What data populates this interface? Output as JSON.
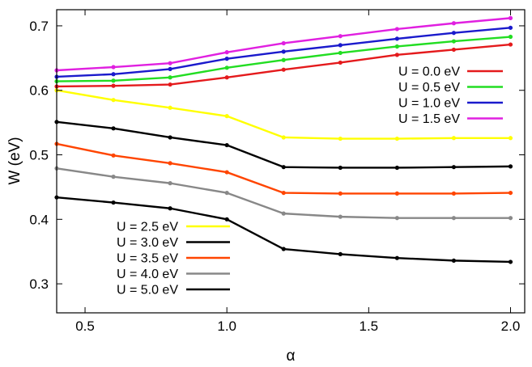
{
  "chart_data": {
    "type": "line",
    "xlabel": "α",
    "ylabel": "W (eV)",
    "xlim": [
      0.4,
      2.05
    ],
    "ylim": [
      0.255,
      0.725
    ],
    "xticks": [
      "0.5",
      "1.0",
      "1.5",
      "2.0"
    ],
    "xtick_values": [
      0.5,
      1.0,
      1.5,
      2.0
    ],
    "yticks": [
      "0.3",
      "0.4",
      "0.5",
      "0.6",
      "0.7"
    ],
    "ytick_values": [
      0.3,
      0.4,
      0.5,
      0.6,
      0.7
    ],
    "grid": false,
    "x": [
      0.4,
      0.6,
      0.8,
      1.0,
      1.2,
      1.4,
      1.6,
      1.8,
      2.0
    ],
    "series": [
      {
        "name": "U = 0.0 eV",
        "color": "#e41a1c",
        "legend_group": "upper",
        "values": [
          0.606,
          0.607,
          0.609,
          0.62,
          0.632,
          0.643,
          0.655,
          0.663,
          0.671
        ]
      },
      {
        "name": "U = 0.5 eV",
        "color": "#22dd22",
        "legend_group": "upper",
        "values": [
          0.614,
          0.615,
          0.62,
          0.635,
          0.647,
          0.658,
          0.668,
          0.676,
          0.683
        ]
      },
      {
        "name": "U = 1.0 eV",
        "color": "#1a1acc",
        "legend_group": "upper",
        "values": [
          0.621,
          0.625,
          0.633,
          0.649,
          0.66,
          0.67,
          0.68,
          0.689,
          0.697
        ]
      },
      {
        "name": "U = 1.5 eV",
        "color": "#e020e0",
        "legend_group": "upper",
        "values": [
          0.631,
          0.636,
          0.642,
          0.659,
          0.673,
          0.684,
          0.695,
          0.704,
          0.712
        ]
      },
      {
        "name": "U = 2.5 eV",
        "color": "#ffff00",
        "legend_group": "lower",
        "values": [
          0.6,
          0.585,
          0.573,
          0.56,
          0.527,
          0.525,
          0.525,
          0.526,
          0.526
        ]
      },
      {
        "name": "U = 3.0 eV",
        "color": "#000000",
        "legend_group": "lower",
        "values": [
          0.551,
          0.541,
          0.527,
          0.515,
          0.481,
          0.48,
          0.48,
          0.481,
          0.482
        ]
      },
      {
        "name": "U = 3.5 eV",
        "color": "#ff4500",
        "legend_group": "lower",
        "values": [
          0.517,
          0.499,
          0.487,
          0.473,
          0.441,
          0.44,
          0.44,
          0.44,
          0.441
        ]
      },
      {
        "name": "U = 4.0 eV",
        "color": "#888888",
        "legend_group": "lower",
        "values": [
          0.479,
          0.466,
          0.456,
          0.441,
          0.409,
          0.404,
          0.402,
          0.402,
          0.402
        ]
      },
      {
        "name": "U = 5.0 eV",
        "color": "#000000",
        "legend_group": "lower",
        "values": [
          0.434,
          0.426,
          0.417,
          0.4,
          0.354,
          0.346,
          0.34,
          0.336,
          0.334
        ]
      }
    ]
  }
}
